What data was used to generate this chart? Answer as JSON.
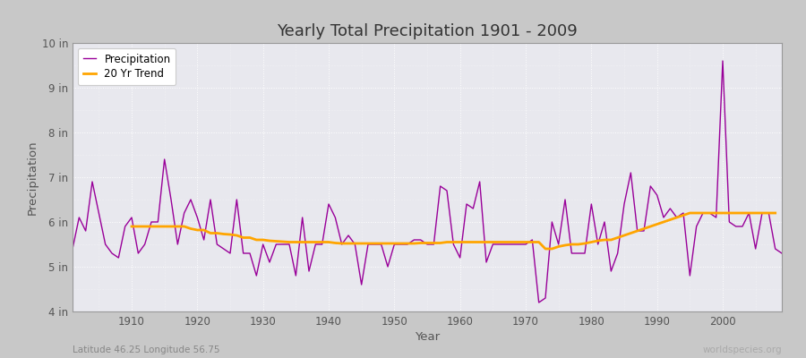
{
  "title": "Yearly Total Precipitation 1901 - 2009",
  "xlabel": "Year",
  "ylabel": "Precipitation",
  "subtitle": "Latitude 46.25 Longitude 56.75",
  "watermark": "worldspecies.org",
  "ylim": [
    4,
    10
  ],
  "yticks": [
    4,
    5,
    6,
    7,
    8,
    9,
    10
  ],
  "ytick_labels": [
    "4 in",
    "5 in",
    "6 in",
    "7 in",
    "8 in",
    "9 in",
    "10 in"
  ],
  "xlim": [
    1901,
    2009
  ],
  "xticks": [
    1910,
    1920,
    1930,
    1940,
    1950,
    1960,
    1970,
    1980,
    1990,
    2000
  ],
  "precip_color": "#990099",
  "trend_color": "#FFA500",
  "fig_bg_color": "#c8c8c8",
  "plot_bg_color": "#e8e8ee",
  "years": [
    1901,
    1902,
    1903,
    1904,
    1905,
    1906,
    1907,
    1908,
    1909,
    1910,
    1911,
    1912,
    1913,
    1914,
    1915,
    1916,
    1917,
    1918,
    1919,
    1920,
    1921,
    1922,
    1923,
    1924,
    1925,
    1926,
    1927,
    1928,
    1929,
    1930,
    1931,
    1932,
    1933,
    1934,
    1935,
    1936,
    1937,
    1938,
    1939,
    1940,
    1941,
    1942,
    1943,
    1944,
    1945,
    1946,
    1947,
    1948,
    1949,
    1950,
    1951,
    1952,
    1953,
    1954,
    1955,
    1956,
    1957,
    1958,
    1959,
    1960,
    1961,
    1962,
    1963,
    1964,
    1965,
    1966,
    1967,
    1968,
    1969,
    1970,
    1971,
    1972,
    1973,
    1974,
    1975,
    1976,
    1977,
    1978,
    1979,
    1980,
    1981,
    1982,
    1983,
    1984,
    1985,
    1986,
    1987,
    1988,
    1989,
    1990,
    1991,
    1992,
    1993,
    1994,
    1995,
    1996,
    1997,
    1998,
    1999,
    2000,
    2001,
    2002,
    2003,
    2004,
    2005,
    2006,
    2007,
    2008,
    2009
  ],
  "precip": [
    5.4,
    6.1,
    5.8,
    6.9,
    6.2,
    5.5,
    5.3,
    5.2,
    5.9,
    6.1,
    5.3,
    5.5,
    6.0,
    6.0,
    7.4,
    6.5,
    5.5,
    6.2,
    6.5,
    6.1,
    5.6,
    6.5,
    5.5,
    5.4,
    5.3,
    6.5,
    5.3,
    5.3,
    4.8,
    5.5,
    5.1,
    5.5,
    5.5,
    5.5,
    4.8,
    6.1,
    4.9,
    5.5,
    5.5,
    6.4,
    6.1,
    5.5,
    5.7,
    5.5,
    4.6,
    5.5,
    5.5,
    5.5,
    5.0,
    5.5,
    5.5,
    5.5,
    5.6,
    5.6,
    5.5,
    5.5,
    6.8,
    6.7,
    5.5,
    5.2,
    6.4,
    6.3,
    6.9,
    5.1,
    5.5,
    5.5,
    5.5,
    5.5,
    5.5,
    5.5,
    5.6,
    4.2,
    4.3,
    6.0,
    5.5,
    6.5,
    5.3,
    5.3,
    5.3,
    6.4,
    5.5,
    6.0,
    4.9,
    5.3,
    6.4,
    7.1,
    5.8,
    5.8,
    6.8,
    6.6,
    6.1,
    6.3,
    6.1,
    6.2,
    4.8,
    5.9,
    6.2,
    6.2,
    6.1,
    9.6,
    6.0,
    5.9,
    5.9,
    6.2,
    5.4,
    6.2,
    6.2,
    5.4,
    5.3
  ],
  "trend": [
    null,
    null,
    null,
    null,
    null,
    null,
    null,
    null,
    null,
    5.9,
    5.9,
    5.9,
    5.9,
    5.9,
    5.9,
    5.9,
    5.9,
    5.9,
    5.85,
    5.82,
    5.82,
    5.75,
    5.75,
    5.73,
    5.72,
    5.7,
    5.65,
    5.65,
    5.6,
    5.6,
    5.58,
    5.57,
    5.56,
    5.55,
    5.55,
    5.55,
    5.55,
    5.55,
    5.55,
    5.55,
    5.53,
    5.52,
    5.52,
    5.52,
    5.52,
    5.52,
    5.52,
    5.52,
    5.52,
    5.52,
    5.52,
    5.52,
    5.52,
    5.53,
    5.53,
    5.53,
    5.53,
    5.55,
    5.55,
    5.55,
    5.55,
    5.55,
    5.55,
    5.55,
    5.55,
    5.55,
    5.55,
    5.55,
    5.55,
    5.55,
    5.55,
    5.55,
    5.4,
    5.4,
    5.45,
    5.48,
    5.5,
    5.5,
    5.52,
    5.55,
    5.58,
    5.6,
    5.6,
    5.65,
    5.7,
    5.75,
    5.8,
    5.85,
    5.9,
    5.95,
    6.0,
    6.05,
    6.1,
    6.15,
    6.2,
    6.2,
    6.2,
    6.2,
    6.2,
    6.2,
    6.2,
    6.2,
    6.2,
    6.2,
    6.2,
    6.2,
    6.2,
    6.2
  ]
}
